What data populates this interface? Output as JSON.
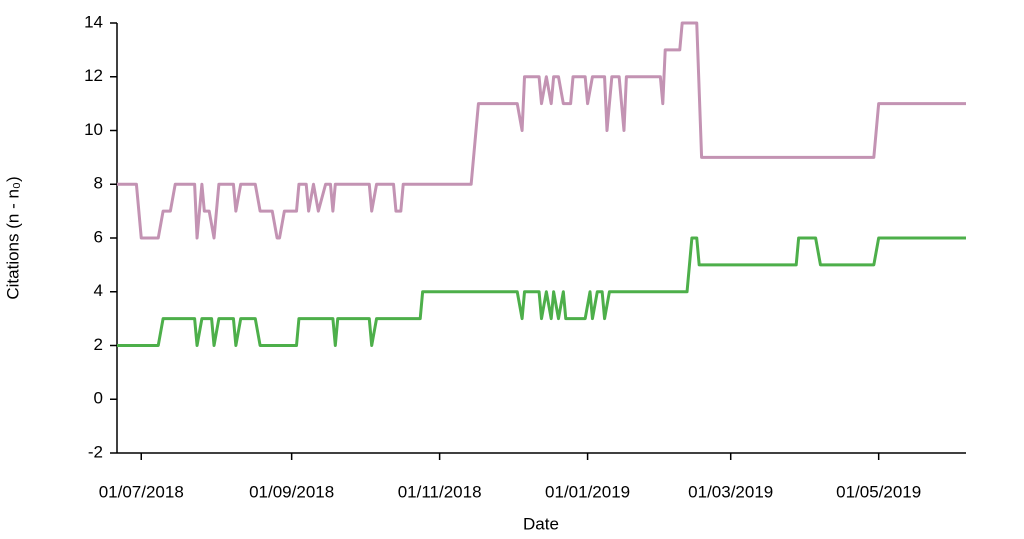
{
  "chart_data": {
    "type": "line",
    "x_label": "Date",
    "y_label": "Citations (n - n₀)",
    "xlim": [
      "2018-06-21",
      "2019-06-06"
    ],
    "xticks": [
      {
        "value": "2018-07-01",
        "label": "01/07/2018"
      },
      {
        "value": "2018-09-01",
        "label": "01/09/2018"
      },
      {
        "value": "2018-11-01",
        "label": "01/11/2018"
      },
      {
        "value": "2019-01-01",
        "label": "01/01/2019"
      },
      {
        "value": "2019-03-01",
        "label": "01/03/2019"
      },
      {
        "value": "2019-05-01",
        "label": "01/05/2019"
      }
    ],
    "ylim": [
      -2,
      14
    ],
    "yticks": [
      -2,
      0,
      2,
      4,
      6,
      8,
      10,
      12,
      14
    ],
    "series": [
      {
        "color": "#c393b3",
        "x": [
          "2018-06-21",
          "2018-06-29",
          "2018-07-01",
          "2018-07-08",
          "2018-07-10",
          "2018-07-13",
          "2018-07-15",
          "2018-07-23",
          "2018-07-24",
          "2018-07-26",
          "2018-07-27",
          "2018-07-29",
          "2018-07-31",
          "2018-08-02",
          "2018-08-08",
          "2018-08-09",
          "2018-08-11",
          "2018-08-17",
          "2018-08-19",
          "2018-08-24",
          "2018-08-26",
          "2018-08-27",
          "2018-08-29",
          "2018-09-03",
          "2018-09-04",
          "2018-09-07",
          "2018-09-08",
          "2018-09-10",
          "2018-09-12",
          "2018-09-15",
          "2018-09-17",
          "2018-09-18",
          "2018-09-19",
          "2018-10-03",
          "2018-10-04",
          "2018-10-06",
          "2018-10-13",
          "2018-10-14",
          "2018-10-16",
          "2018-10-17",
          "2018-11-14",
          "2018-11-17",
          "2018-12-03",
          "2018-12-05",
          "2018-12-06",
          "2018-12-12",
          "2018-12-13",
          "2018-12-15",
          "2018-12-17",
          "2018-12-18",
          "2018-12-20",
          "2018-12-22",
          "2018-12-25",
          "2018-12-26",
          "2018-12-31",
          "2019-01-01",
          "2019-01-03",
          "2019-01-08",
          "2019-01-09",
          "2019-01-11",
          "2019-01-14",
          "2019-01-16",
          "2019-01-17",
          "2019-01-31",
          "2019-02-01",
          "2019-02-02",
          "2019-02-08",
          "2019-02-09",
          "2019-02-15",
          "2019-02-17",
          "2019-04-29",
          "2019-05-01",
          "2019-06-06"
        ],
        "values": [
          8,
          8,
          6,
          6,
          7,
          7,
          8,
          8,
          6,
          8,
          7,
          7,
          6,
          8,
          8,
          7,
          8,
          8,
          7,
          7,
          6,
          6,
          7,
          7,
          8,
          8,
          7,
          8,
          7,
          8,
          8,
          7,
          8,
          8,
          7,
          8,
          8,
          7,
          7,
          8,
          8,
          11,
          11,
          10,
          12,
          12,
          11,
          12,
          11,
          12,
          12,
          11,
          11,
          12,
          12,
          11,
          12,
          12,
          10,
          12,
          12,
          10,
          12,
          12,
          11,
          13,
          13,
          14,
          14,
          9,
          9,
          11,
          11
        ]
      },
      {
        "color": "#4daf4a",
        "x": [
          "2018-06-21",
          "2018-07-08",
          "2018-07-10",
          "2018-07-23",
          "2018-07-24",
          "2018-07-26",
          "2018-07-30",
          "2018-07-31",
          "2018-08-02",
          "2018-08-08",
          "2018-08-09",
          "2018-08-11",
          "2018-08-17",
          "2018-08-19",
          "2018-09-03",
          "2018-09-04",
          "2018-09-18",
          "2018-09-19",
          "2018-09-20",
          "2018-10-03",
          "2018-10-04",
          "2018-10-06",
          "2018-10-24",
          "2018-10-25",
          "2018-12-03",
          "2018-12-05",
          "2018-12-06",
          "2018-12-12",
          "2018-12-13",
          "2018-12-15",
          "2018-12-17",
          "2018-12-18",
          "2018-12-20",
          "2018-12-22",
          "2018-12-23",
          "2018-12-31",
          "2019-01-02",
          "2019-01-03",
          "2019-01-05",
          "2019-01-07",
          "2019-01-08",
          "2019-01-10",
          "2019-02-11",
          "2019-02-13",
          "2019-02-15",
          "2019-02-16",
          "2019-03-28",
          "2019-03-29",
          "2019-04-05",
          "2019-04-07",
          "2019-04-29",
          "2019-05-01",
          "2019-06-06"
        ],
        "values": [
          2,
          2,
          3,
          3,
          2,
          3,
          3,
          2,
          3,
          3,
          2,
          3,
          3,
          2,
          2,
          3,
          3,
          2,
          3,
          3,
          2,
          3,
          3,
          4,
          4,
          3,
          4,
          4,
          3,
          4,
          3,
          4,
          3,
          4,
          3,
          3,
          4,
          3,
          4,
          4,
          3,
          4,
          4,
          6,
          6,
          5,
          5,
          6,
          6,
          5,
          5,
          6,
          6
        ]
      }
    ]
  }
}
